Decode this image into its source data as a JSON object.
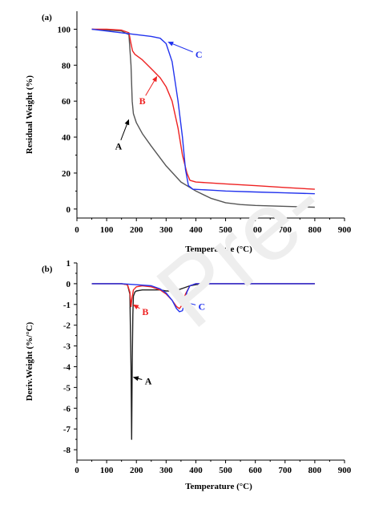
{
  "chart_data": [
    {
      "panel": "(a)",
      "type": "line",
      "xlabel": "Temperature (°C)",
      "ylabel": "Residual Weight (%)",
      "xlim": [
        0,
        900
      ],
      "ylim": [
        -5,
        110
      ],
      "xticks": [
        0,
        100,
        200,
        300,
        400,
        500,
        600,
        700,
        800,
        900
      ],
      "yticks": [
        0,
        20,
        40,
        60,
        80,
        100
      ],
      "grid": false,
      "series": [
        {
          "name": "A",
          "color": "#555555",
          "x": [
            50,
            100,
            150,
            175,
            182,
            186,
            190,
            200,
            220,
            250,
            300,
            350,
            400,
            450,
            500,
            550,
            600,
            700,
            800
          ],
          "y": [
            100,
            99.5,
            99,
            97,
            80,
            60,
            53,
            48,
            42,
            35,
            24,
            15,
            10,
            6,
            3.5,
            2.5,
            2,
            1.5,
            1
          ]
        },
        {
          "name": "B",
          "color": "#ee2222",
          "x": [
            50,
            100,
            150,
            175,
            182,
            187,
            195,
            220,
            250,
            280,
            300,
            320,
            340,
            355,
            370,
            380,
            400,
            500,
            600,
            700,
            800
          ],
          "y": [
            100,
            100,
            99.5,
            98,
            92,
            88,
            86,
            83,
            78,
            73,
            68,
            60,
            45,
            30,
            20,
            16,
            15,
            14,
            13,
            12,
            11
          ]
        },
        {
          "name": "C",
          "color": "#2233ee",
          "x": [
            50,
            100,
            150,
            200,
            250,
            280,
            300,
            320,
            340,
            355,
            365,
            375,
            390,
            450,
            500,
            600,
            700,
            800
          ],
          "y": [
            100,
            99,
            98,
            97,
            96,
            95,
            92,
            82,
            60,
            40,
            22,
            13,
            11,
            10.5,
            10,
            9.5,
            9,
            8.5
          ]
        }
      ],
      "annotations": [
        {
          "text": "A",
          "color": "#000000",
          "x": 175,
          "y": 50,
          "label_x": 140,
          "label_y": 35
        },
        {
          "text": "B",
          "color": "#ee2222",
          "x": 270,
          "y": 74,
          "label_x": 220,
          "label_y": 60
        },
        {
          "text": "C",
          "color": "#2233ee",
          "x": 305,
          "y": 93,
          "label_x": 410,
          "label_y": 86
        }
      ]
    },
    {
      "panel": "(b)",
      "type": "line",
      "xlabel": "Temperature (°C)",
      "ylabel": "Deriv.Weight (%/°C)",
      "xlim": [
        0,
        900
      ],
      "ylim": [
        -8.5,
        1
      ],
      "xticks": [
        0,
        100,
        200,
        300,
        400,
        500,
        600,
        700,
        800,
        900
      ],
      "yticks": [
        1,
        0,
        -1,
        -2,
        -3,
        -4,
        -5,
        -6,
        -7,
        -8
      ],
      "grid": false,
      "series": [
        {
          "name": "A",
          "color": "#222222",
          "x": [
            50,
            100,
            150,
            170,
            178,
            182,
            184,
            186,
            188,
            190,
            195,
            200,
            220,
            250,
            280,
            300,
            320,
            340,
            360,
            380,
            400,
            420,
            500,
            600,
            700,
            800
          ],
          "y": [
            0,
            0,
            0,
            -0.05,
            -0.5,
            -4,
            -7.5,
            -4,
            -1.5,
            -0.6,
            -0.4,
            -0.35,
            -0.3,
            -0.3,
            -0.3,
            -0.35,
            -0.35,
            -0.3,
            -0.2,
            -0.1,
            -0.05,
            0,
            0,
            0,
            0,
            0
          ]
        },
        {
          "name": "B",
          "color": "#ee2222",
          "x": [
            50,
            100,
            150,
            170,
            178,
            182,
            185,
            190,
            200,
            220,
            250,
            280,
            300,
            320,
            335,
            345,
            355,
            365,
            380,
            400,
            450,
            500,
            600,
            700,
            800
          ],
          "y": [
            0,
            0,
            0,
            -0.05,
            -0.4,
            -1.1,
            -0.7,
            -0.3,
            -0.15,
            -0.1,
            -0.15,
            -0.3,
            -0.5,
            -0.8,
            -1.1,
            -1.2,
            -1.0,
            -0.5,
            -0.1,
            0,
            0,
            0,
            0,
            0,
            0
          ]
        },
        {
          "name": "C",
          "color": "#2233ee",
          "x": [
            50,
            100,
            150,
            200,
            250,
            280,
            300,
            320,
            335,
            345,
            355,
            362,
            370,
            380,
            400,
            450,
            500,
            600,
            700,
            800
          ],
          "y": [
            0,
            0,
            0,
            -0.05,
            -0.1,
            -0.25,
            -0.45,
            -0.8,
            -1.2,
            -1.35,
            -1.3,
            -0.9,
            -0.4,
            -0.1,
            0,
            0,
            0,
            0,
            0,
            0
          ]
        }
      ],
      "annotations": [
        {
          "text": "A",
          "color": "#000000",
          "x": 188,
          "y": -4.5,
          "label_x": 240,
          "label_y": -4.7
        },
        {
          "text": "B",
          "color": "#ee2222",
          "x": 188,
          "y": -1.0,
          "label_x": 230,
          "label_y": -1.35
        },
        {
          "text": "C",
          "color": "#2233ee",
          "x": 352,
          "y": -0.85,
          "label_x": 420,
          "label_y": -1.1
        }
      ]
    }
  ]
}
